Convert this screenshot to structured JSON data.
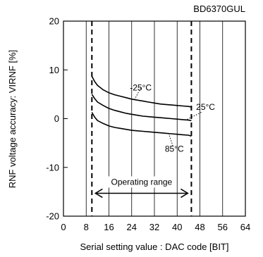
{
  "chart_data": {
    "type": "line",
    "title": "BD6370GUL",
    "xlabel": "Serial setting value : DAC code [BIT]",
    "ylabel": "RNF voltage accuracy: VIRNF [%]",
    "xlim": [
      0,
      64
    ],
    "ylim": [
      -20,
      20
    ],
    "xticks": [
      0,
      8,
      16,
      24,
      32,
      40,
      48,
      56,
      64
    ],
    "xtick_labels": [
      "0",
      "8",
      "16",
      "24",
      "32",
      "40",
      "48",
      "56",
      "64"
    ],
    "yticks": [
      -20,
      -10,
      0,
      10,
      20
    ],
    "ytick_labels": [
      "-20",
      "-10",
      "0",
      "10",
      "20"
    ],
    "grid": "vertical",
    "operating_range": {
      "x_start": 10,
      "x_end": 45,
      "label": "Operating range"
    },
    "series": [
      {
        "name": "-25°C",
        "x": [
          10,
          11,
          12,
          14,
          16,
          18,
          20,
          22,
          24,
          26,
          28,
          30,
          32,
          34,
          36,
          38,
          40,
          42,
          44,
          45
        ],
        "y": [
          8.7,
          7.6,
          6.8,
          5.9,
          5.3,
          4.9,
          4.6,
          4.3,
          4.0,
          3.8,
          3.6,
          3.4,
          3.2,
          3.0,
          2.9,
          2.8,
          2.7,
          2.6,
          2.5,
          2.4
        ]
      },
      {
        "name": "25°C",
        "x": [
          10,
          11,
          12,
          14,
          16,
          18,
          20,
          22,
          24,
          26,
          28,
          30,
          32,
          34,
          36,
          38,
          40,
          42,
          44,
          45
        ],
        "y": [
          5.0,
          4.1,
          3.4,
          2.7,
          2.1,
          1.7,
          1.4,
          1.1,
          0.9,
          0.7,
          0.5,
          0.4,
          0.3,
          0.2,
          0.1,
          0.0,
          -0.1,
          -0.2,
          -0.3,
          -0.4
        ]
      },
      {
        "name": "85°C",
        "x": [
          10,
          11,
          12,
          14,
          16,
          18,
          20,
          22,
          24,
          26,
          28,
          30,
          32,
          34,
          36,
          38,
          40,
          42,
          44,
          45
        ],
        "y": [
          1.3,
          0.3,
          -0.4,
          -1.0,
          -1.5,
          -1.8,
          -2.0,
          -2.2,
          -2.4,
          -2.5,
          -2.6,
          -2.7,
          -2.8,
          -2.9,
          -3.0,
          -3.1,
          -3.2,
          -3.3,
          -3.4,
          -3.6
        ]
      }
    ],
    "annotations": [
      {
        "text": "-25°C",
        "series": "-25°C"
      },
      {
        "text": "25°C",
        "series": "25°C"
      },
      {
        "text": "85°C",
        "series": "85°C"
      }
    ]
  }
}
